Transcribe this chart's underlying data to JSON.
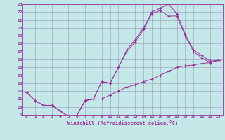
{
  "xlabel": "Windchill (Refroidissement éolien,°C)",
  "bg_color": "#c4e8e8",
  "grid_color": "#9999bb",
  "line_color": "#993399",
  "line1_x": [
    0,
    1,
    2,
    3,
    4,
    5,
    6,
    7,
    8,
    9,
    10,
    11,
    12,
    13,
    14,
    15,
    16,
    17,
    18,
    19,
    20,
    21,
    22,
    23
  ],
  "line1_y": [
    11.8,
    10.8,
    10.2,
    10.2,
    9.5,
    8.8,
    8.9,
    10.8,
    11.0,
    13.2,
    13.0,
    15.0,
    17.2,
    18.5,
    20.0,
    22.0,
    22.5,
    23.0,
    21.8,
    19.2,
    17.2,
    16.5,
    15.8,
    15.9
  ],
  "line2_x": [
    0,
    1,
    2,
    3,
    4,
    5,
    6,
    7,
    8,
    9,
    10,
    11,
    12,
    13,
    14,
    15,
    16,
    17,
    18,
    19,
    20,
    21,
    22,
    23
  ],
  "line2_y": [
    11.8,
    10.8,
    10.2,
    10.2,
    9.5,
    8.8,
    8.9,
    10.8,
    11.0,
    13.2,
    13.0,
    15.0,
    17.0,
    18.2,
    19.8,
    21.8,
    22.2,
    21.5,
    21.5,
    19.0,
    17.0,
    16.2,
    15.6,
    15.9
  ],
  "line3_x": [
    0,
    1,
    2,
    3,
    4,
    5,
    6,
    7,
    8,
    9,
    10,
    11,
    12,
    13,
    14,
    15,
    16,
    17,
    18,
    19,
    20,
    21,
    22,
    23
  ],
  "line3_y": [
    11.8,
    10.8,
    10.2,
    10.2,
    9.5,
    8.8,
    8.9,
    10.8,
    11.0,
    11.0,
    11.5,
    12.0,
    12.5,
    12.8,
    13.2,
    13.5,
    14.0,
    14.5,
    15.0,
    15.2,
    15.3,
    15.5,
    15.6,
    15.9
  ],
  "xlim": [
    -0.5,
    23.5
  ],
  "ylim": [
    9,
    23
  ],
  "xticks": [
    0,
    1,
    2,
    3,
    4,
    5,
    6,
    7,
    8,
    9,
    10,
    11,
    12,
    13,
    14,
    15,
    16,
    17,
    18,
    19,
    20,
    21,
    22,
    23
  ],
  "yticks": [
    9,
    10,
    11,
    12,
    13,
    14,
    15,
    16,
    17,
    18,
    19,
    20,
    21,
    22,
    23
  ]
}
